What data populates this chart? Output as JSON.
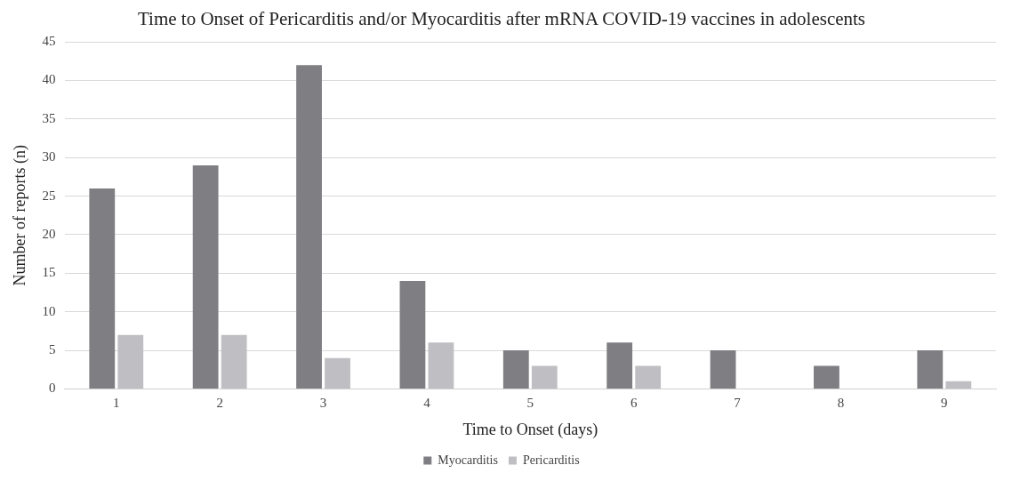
{
  "chart_data": {
    "type": "bar",
    "title": "Time to Onset of Pericarditis and/or Myocarditis after mRNA COVID-19 vaccines in adolescents",
    "xlabel": "Time to Onset (days)",
    "ylabel": "Number of reports (n)",
    "categories": [
      "1",
      "2",
      "3",
      "4",
      "5",
      "6",
      "7",
      "8",
      "9"
    ],
    "series": [
      {
        "name": "Myocarditis",
        "color": "#7f7f83",
        "values": [
          26,
          29,
          42,
          14,
          5,
          6,
          5,
          3,
          5
        ]
      },
      {
        "name": "Pericarditis",
        "color": "#bfbfc3",
        "values": [
          7,
          7,
          4,
          6,
          3,
          3,
          0,
          0,
          1
        ]
      }
    ],
    "ylim": [
      0,
      45
    ],
    "yticks": [
      0,
      5,
      10,
      15,
      20,
      25,
      30,
      35,
      40,
      45
    ],
    "grid": "y",
    "legend": "bottom"
  }
}
